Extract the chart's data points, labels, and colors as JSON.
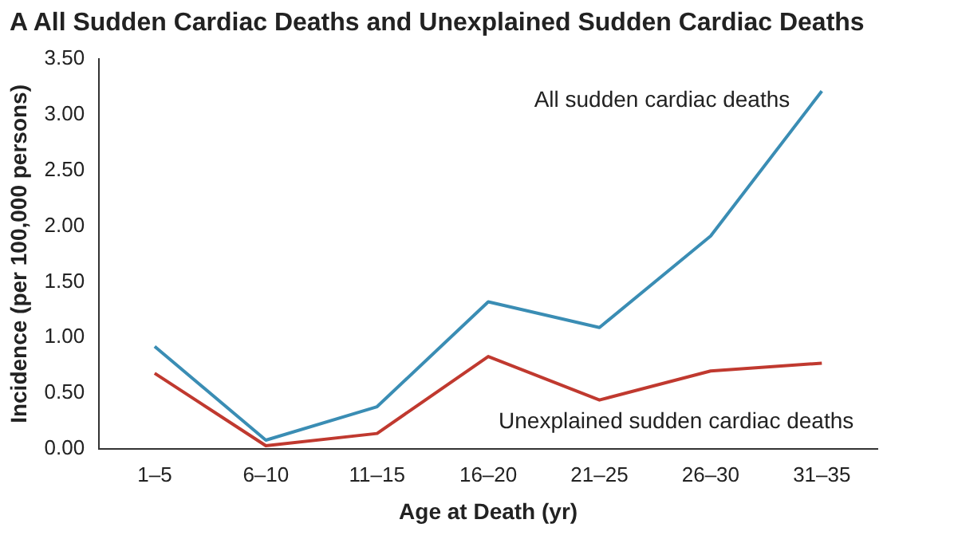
{
  "chart_data": {
    "type": "line",
    "title": "A  All Sudden Cardiac Deaths and Unexplained Sudden Cardiac Deaths",
    "xlabel": "Age at Death (yr)",
    "ylabel": "Incidence (per 100,000 persons)",
    "categories": [
      "1–5",
      "6–10",
      "11–15",
      "16–20",
      "21–25",
      "26–30",
      "31–35"
    ],
    "series": [
      {
        "name": "All sudden cardiac deaths",
        "color": "#3a8db4",
        "values": [
          0.92,
          0.08,
          0.38,
          1.32,
          1.09,
          1.91,
          3.21
        ]
      },
      {
        "name": "Unexplained sudden cardiac deaths",
        "color": "#c0392f",
        "values": [
          0.68,
          0.03,
          0.14,
          0.83,
          0.44,
          0.7,
          0.77
        ]
      }
    ],
    "ylim": [
      0,
      3.5
    ],
    "yticks": [
      {
        "value": 0,
        "label": "0.00"
      },
      {
        "value": 0.5,
        "label": "0.50"
      },
      {
        "value": 1,
        "label": "1.00"
      },
      {
        "value": 1.5,
        "label": "1.50"
      },
      {
        "value": 2,
        "label": "2.00"
      },
      {
        "value": 2.5,
        "label": "2.50"
      },
      {
        "value": 3,
        "label": "3.00"
      },
      {
        "value": 3.5,
        "label": "3.50"
      }
    ],
    "grid": false,
    "legend": false,
    "marker": "none",
    "line_style": "solid"
  }
}
